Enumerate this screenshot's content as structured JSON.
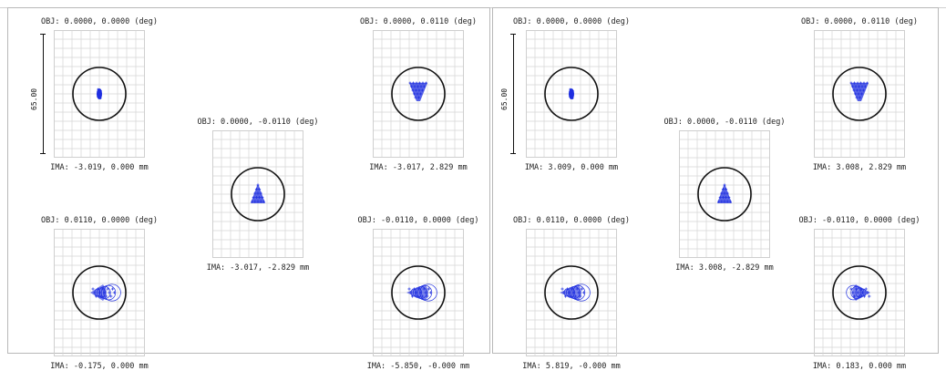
{
  "panels": [
    {
      "scale_label": "65.00",
      "cells": [
        {
          "obj": "OBJ: 0.0000, 0.0000 (deg)",
          "ima": "IMA: -3.019, 0.000 mm",
          "spot": "dot"
        },
        {
          "obj": "OBJ: 0.0000, 0.0110 (deg)",
          "ima": "IMA: -3.017, 2.829 mm",
          "spot": "down"
        },
        {
          "obj": "OBJ: 0.0000, -0.0110 (deg)",
          "ima": "IMA: -3.017, -2.829 mm",
          "spot": "up"
        },
        {
          "obj": "OBJ: 0.0110, 0.0000 (deg)",
          "ima": "IMA: -0.175, 0.000 mm",
          "spot": "left"
        },
        {
          "obj": "OBJ: -0.0110, 0.0000 (deg)",
          "ima": "IMA: -5.850, -0.000 mm",
          "spot": "left-wide"
        }
      ]
    },
    {
      "scale_label": "65.00",
      "cells": [
        {
          "obj": "OBJ: 0.0000, 0.0000 (deg)",
          "ima": "IMA: 3.009, 0.000 mm",
          "spot": "dot"
        },
        {
          "obj": "OBJ: 0.0000, 0.0110 (deg)",
          "ima": "IMA: 3.008, 2.829 mm",
          "spot": "down"
        },
        {
          "obj": "OBJ: 0.0000, -0.0110 (deg)",
          "ima": "IMA: 3.008, -2.829 mm",
          "spot": "up"
        },
        {
          "obj": "OBJ: 0.0110, 0.0000 (deg)",
          "ima": "IMA: 5.819, -0.000 mm",
          "spot": "left-wide"
        },
        {
          "obj": "OBJ: -0.0110, 0.0000 (deg)",
          "ima": "IMA: 0.183, 0.000 mm",
          "spot": "right"
        }
      ]
    }
  ],
  "colors": {
    "spot": "#1f2fe0",
    "circle": "#111111",
    "grid": "#d4d4d4",
    "border": "#b8b8b8"
  }
}
